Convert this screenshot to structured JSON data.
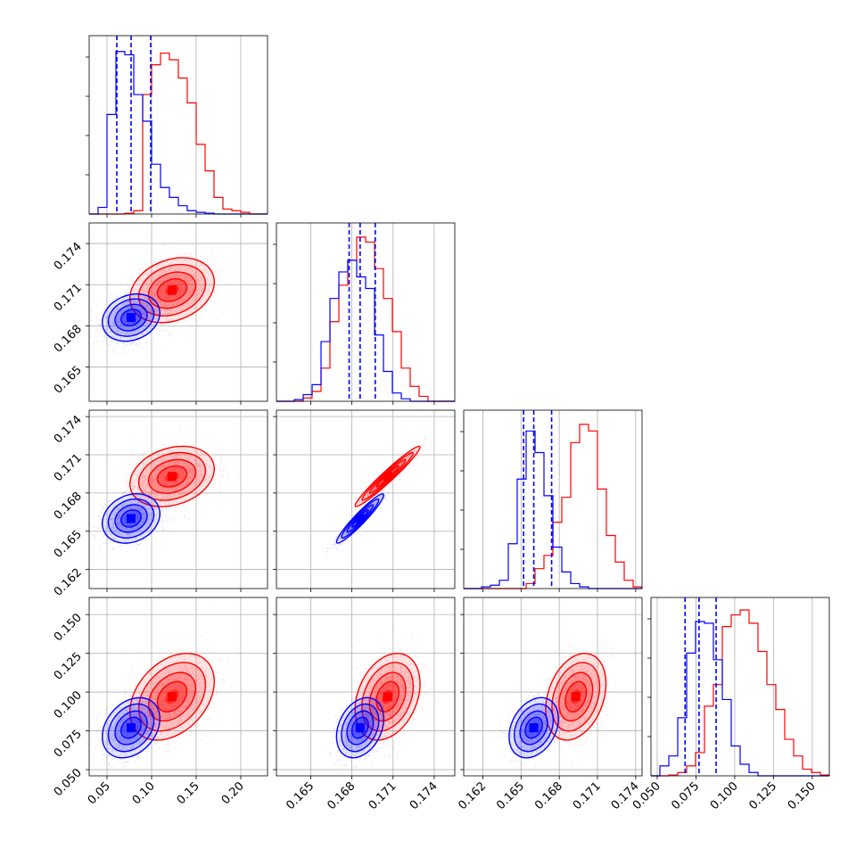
{
  "colors": {
    "series_a": "#ff0000",
    "series_b": "#0000ff",
    "grid": "#b0b0b0"
  },
  "chart_data": {
    "type": "corner",
    "grid": true,
    "parameters": [
      {
        "range": [
          0.03,
          0.23
        ],
        "ticks": [
          0.05,
          0.1,
          0.15,
          0.2
        ],
        "tick_labels": [
          "0.05",
          "0.10",
          "0.15",
          "0.20"
        ]
      },
      {
        "range": [
          0.1625,
          0.1755
        ],
        "ticks": [
          0.165,
          0.168,
          0.171,
          0.174
        ],
        "tick_labels": [
          "0.165",
          "0.168",
          "0.171",
          "0.174"
        ]
      },
      {
        "range": [
          0.1605,
          0.1745
        ],
        "ticks": [
          0.162,
          0.165,
          0.168,
          0.171,
          0.174
        ],
        "tick_labels": [
          "0.162",
          "0.165",
          "0.168",
          "0.171",
          "0.174"
        ]
      },
      {
        "range": [
          0.046,
          0.161
        ],
        "ticks": [
          0.05,
          0.075,
          0.1,
          0.125,
          0.15
        ],
        "tick_labels": [
          "0.050",
          "0.075",
          "0.100",
          "0.125",
          "0.150"
        ]
      }
    ],
    "series": [
      {
        "key": "red",
        "mean": [
          0.123,
          0.1706,
          0.1693,
          0.097
        ],
        "sd": [
          0.022,
          0.0011,
          0.0011,
          0.013
        ],
        "rho": {
          "1-0": 0.25,
          "2-0": 0.25,
          "2-1": 0.97,
          "3-0": 0.35,
          "3-1": 0.3,
          "3-2": 0.3
        },
        "hist": [
          [
            0.0,
            0.0,
            0.0,
            0.0,
            0.005,
            0.02,
            0.72,
            0.9,
            0.97,
            0.93,
            0.82,
            0.67,
            0.42,
            0.26,
            0.1,
            0.03,
            0.02,
            0.01,
            0.0,
            0.0
          ],
          [
            0.0,
            0.0,
            0.0,
            0.02,
            0.06,
            0.2,
            0.48,
            0.7,
            0.85,
            0.99,
            0.96,
            0.8,
            0.62,
            0.42,
            0.2,
            0.09,
            0.03,
            0.0,
            0.0,
            0.0
          ],
          [
            0.0,
            0.0,
            0.0,
            0.0,
            0.0,
            0.0,
            0.0,
            0.03,
            0.12,
            0.2,
            0.4,
            0.55,
            0.88,
            0.99,
            0.95,
            0.6,
            0.32,
            0.16,
            0.05,
            0.01
          ],
          [
            0.0,
            0.0,
            0.005,
            0.02,
            0.06,
            0.14,
            0.42,
            0.55,
            0.9,
            0.97,
            1.0,
            0.92,
            0.75,
            0.55,
            0.4,
            0.22,
            0.12,
            0.04,
            0.02,
            0.005
          ]
        ]
      },
      {
        "key": "blue",
        "mean": [
          0.077,
          0.1686,
          0.166,
          0.077
        ],
        "sd": [
          0.015,
          0.0008,
          0.0009,
          0.009
        ],
        "rho": {
          "1-0": 0.2,
          "2-0": 0.2,
          "2-1": 0.95,
          "3-0": 0.3,
          "3-1": 0.3,
          "3-2": 0.3
        },
        "quantiles": [
          [
            0.061,
            0.077,
            0.099
          ],
          [
            0.1678,
            0.1686,
            0.1697
          ],
          [
            0.1652,
            0.166,
            0.1674
          ],
          [
            0.068,
            0.077,
            0.088
          ]
        ],
        "hist": [
          [
            0.0,
            0.04,
            0.6,
            0.98,
            0.96,
            0.72,
            0.56,
            0.3,
            0.16,
            0.1,
            0.05,
            0.02,
            0.01,
            0.005,
            0.0,
            0.0,
            0.0,
            0.0,
            0.0,
            0.0
          ],
          [
            0.0,
            0.0,
            0.01,
            0.04,
            0.1,
            0.36,
            0.62,
            0.78,
            0.85,
            0.75,
            0.68,
            0.4,
            0.18,
            0.05,
            0.015,
            0.0,
            0.0,
            0.0,
            0.0,
            0.0
          ],
          [
            0.0,
            0.0,
            0.01,
            0.02,
            0.05,
            0.27,
            0.66,
            0.95,
            0.82,
            0.56,
            0.25,
            0.1,
            0.03,
            0.01,
            0.0,
            0.0,
            0.0,
            0.0,
            0.0,
            0.0
          ],
          [
            0.0,
            0.06,
            0.12,
            0.35,
            0.74,
            0.93,
            0.92,
            0.7,
            0.46,
            0.18,
            0.07,
            0.02,
            0.0,
            0.0,
            0.0,
            0.0,
            0.0,
            0.0,
            0.0,
            0.0
          ]
        ]
      }
    ]
  }
}
